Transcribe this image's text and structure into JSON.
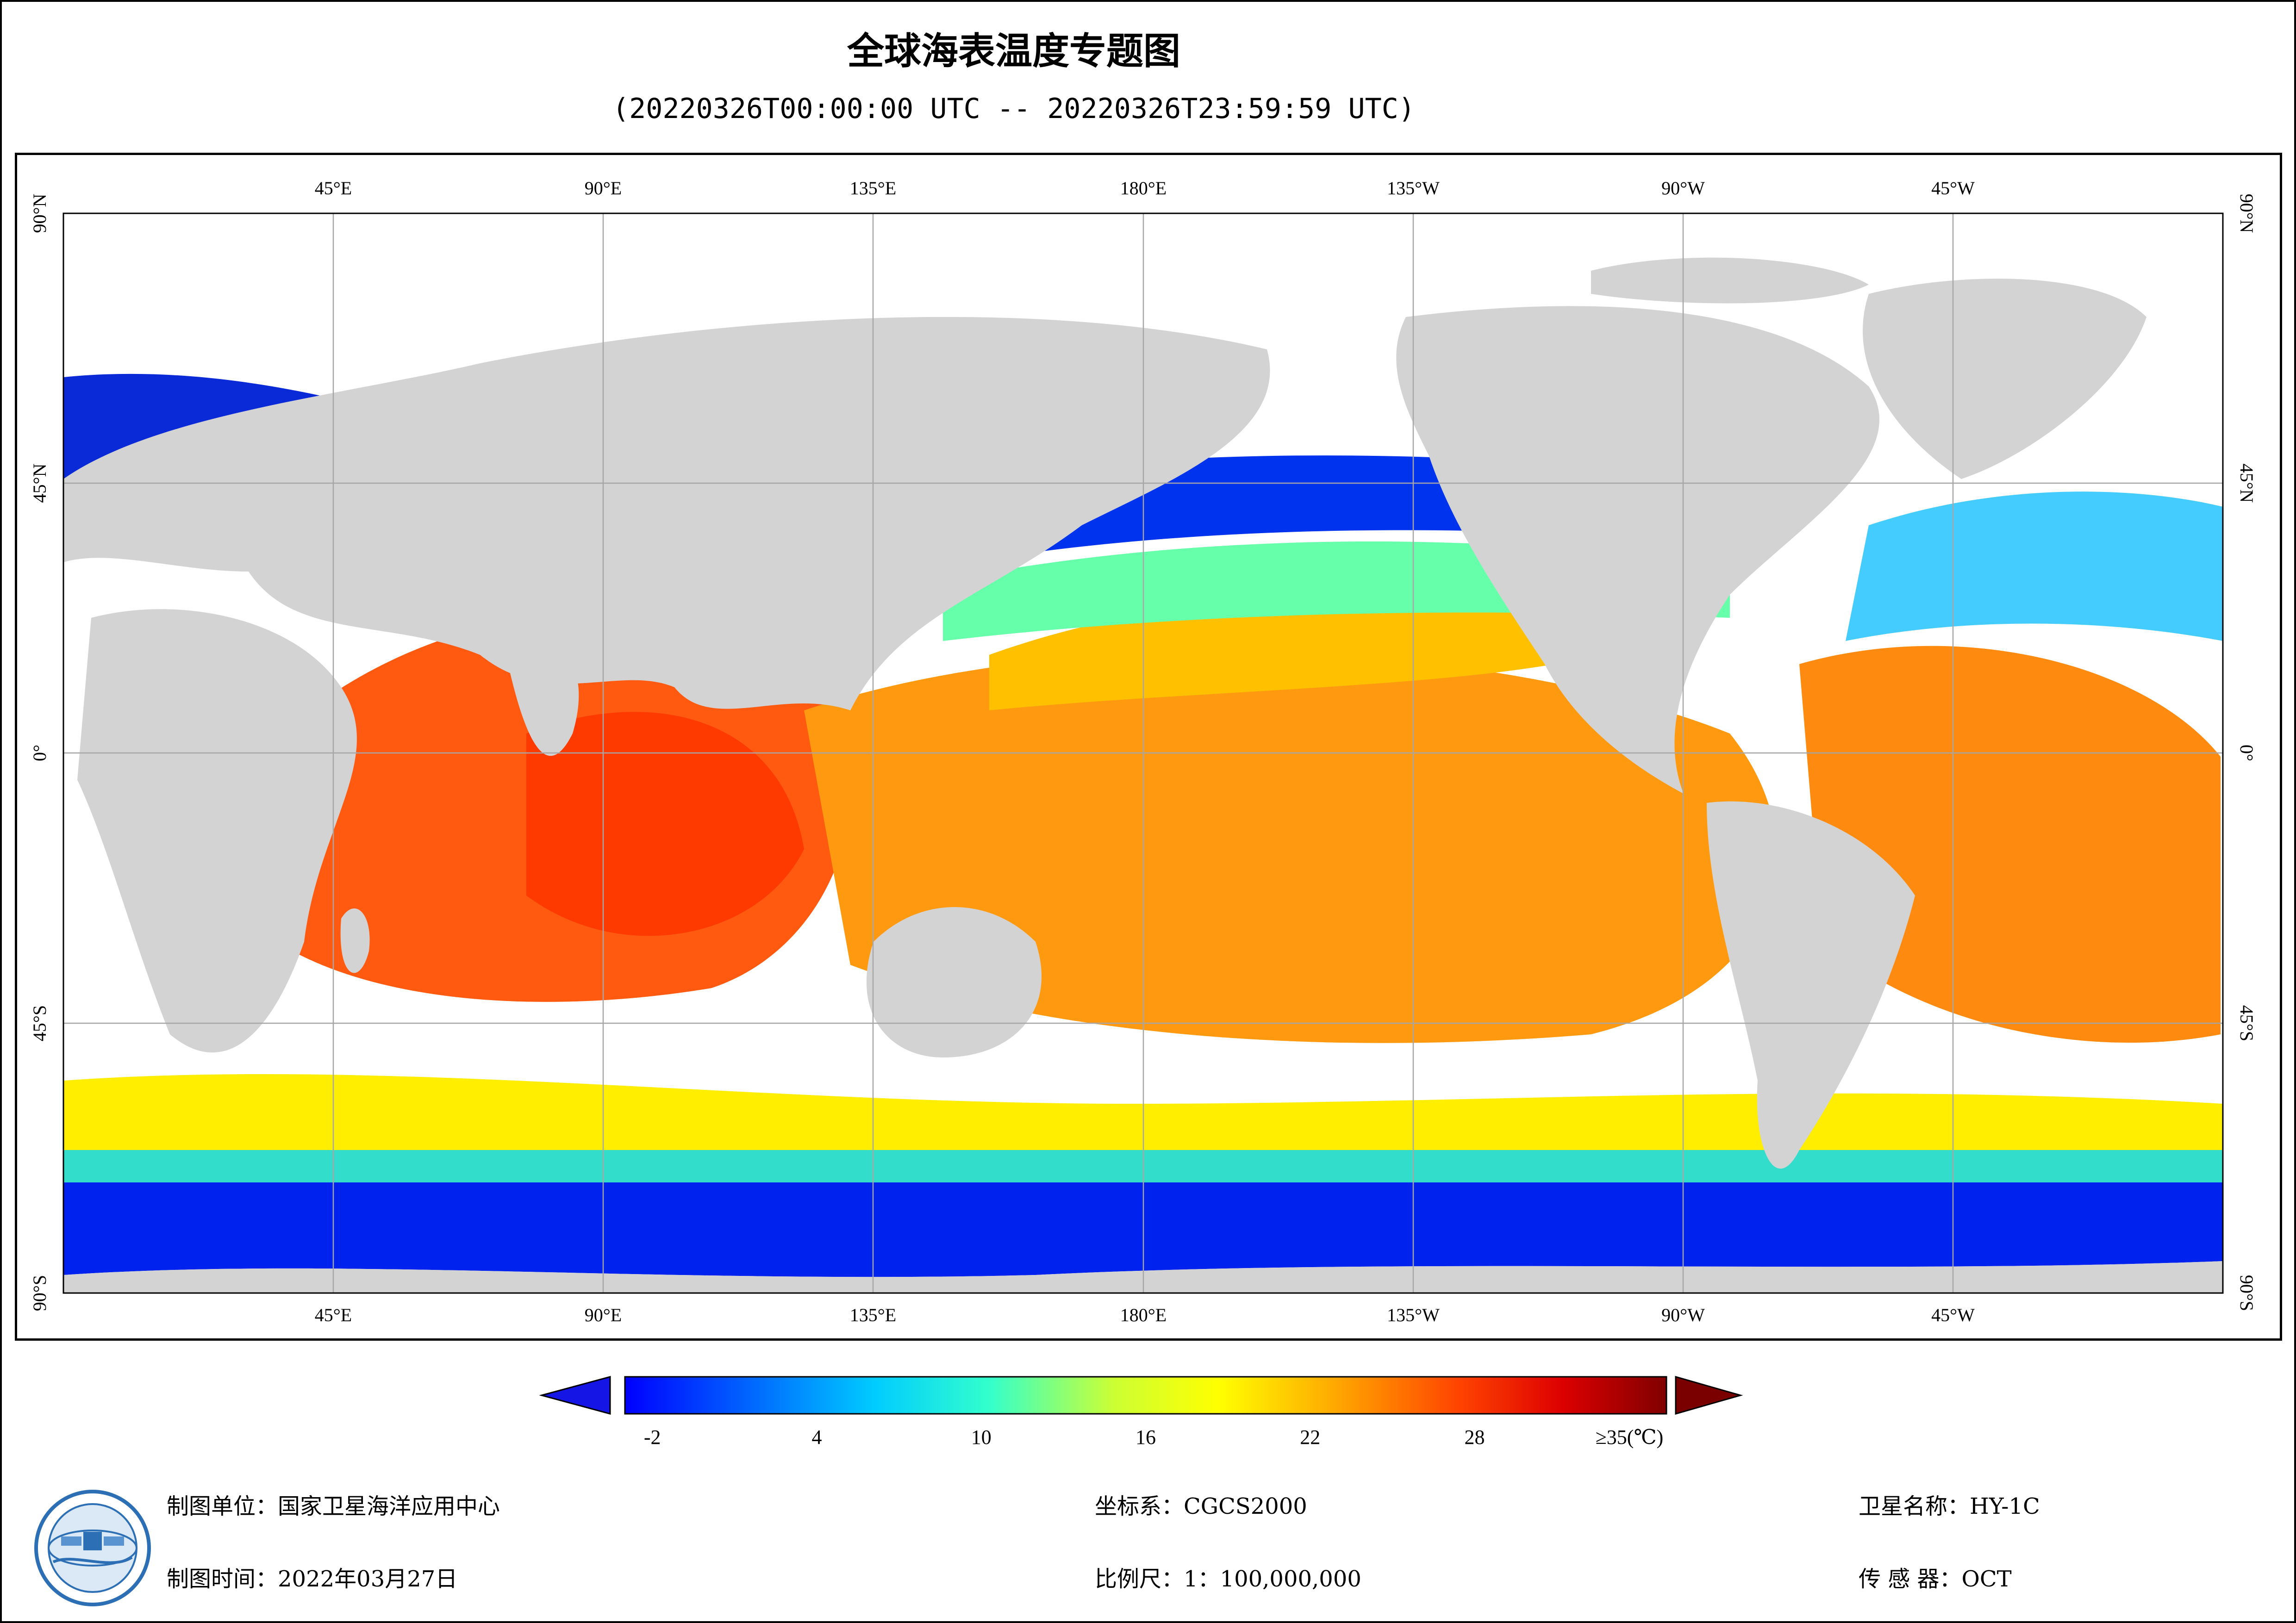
{
  "title": "全球海表温度专题图",
  "subtitle": "(20220326T00:00:00 UTC -- 20220326T23:59:59 UTC)",
  "map": {
    "lon_labels_top": [
      "45°E",
      "90°E",
      "135°E",
      "180°E",
      "135°W",
      "90°W",
      "45°W"
    ],
    "lon_labels_bottom": [
      "45°E",
      "90°E",
      "135°E",
      "180°E",
      "135°W",
      "90°W",
      "45°W"
    ],
    "lat_labels": [
      "90°N",
      "45°N",
      "0°",
      "45°S",
      "90°S"
    ],
    "colors": {
      "land": "#d3d3d3",
      "no_data": "#ffffff",
      "grid": "#a6a6a6"
    }
  },
  "colorbar": {
    "tick_labels": [
      "-2",
      "4",
      "10",
      "16",
      "22",
      "28",
      "≥35(℃)"
    ],
    "tick_values": [
      -2,
      4,
      10,
      16,
      22,
      28,
      35
    ],
    "range": [
      -3,
      35
    ],
    "under_color": "#1515e6",
    "over_color": "#7a0000",
    "stops": [
      "#0000ff",
      "#0066ff",
      "#00ccff",
      "#33ffcc",
      "#ccff33",
      "#ffff00",
      "#ffaa00",
      "#ff4400",
      "#dd0000",
      "#800000"
    ]
  },
  "footer": {
    "unit": "制图单位：国家卫星海洋应用中心",
    "time": "制图时间：2022年03月27日",
    "crs": "坐标系：CGCS2000",
    "scale": "比例尺：1：100,000,000",
    "satellite": "卫星名称：HY-1C",
    "sensor": "传 感 器：OCT"
  },
  "logo_icon": "nsoas-logo-icon"
}
